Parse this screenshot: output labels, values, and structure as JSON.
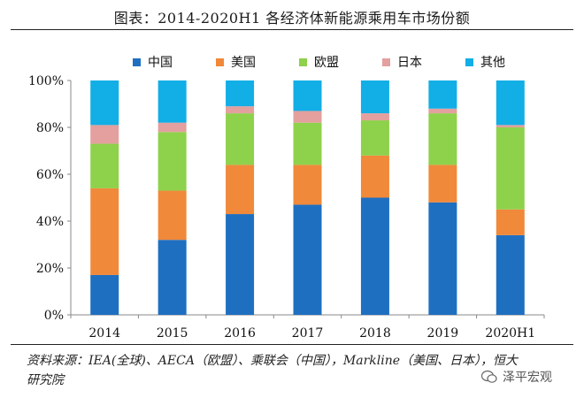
{
  "title": "图表：2014-2020H1 各经济体新能源乘用车市场份额",
  "source": "资料来源：IEA(全球)、AECA（欧盟）、乘联会（中国），Markline（美国、日本），恒大研究院",
  "watermark": "泽平宏观",
  "chart_data": {
    "type": "bar",
    "stacked": true,
    "categories": [
      "2014",
      "2015",
      "2016",
      "2017",
      "2018",
      "2019",
      "2020H1"
    ],
    "ylim": [
      0,
      100
    ],
    "yticks": [
      "0%",
      "20%",
      "40%",
      "60%",
      "80%",
      "100%"
    ],
    "legend_position": "top",
    "series": [
      {
        "name": "中国",
        "color": "#1f6fc1",
        "values": [
          17,
          32,
          43,
          47,
          50,
          48,
          34
        ]
      },
      {
        "name": "美国",
        "color": "#f0893a",
        "values": [
          37,
          21,
          21,
          17,
          18,
          16,
          11
        ]
      },
      {
        "name": "欧盟",
        "color": "#8ed14b",
        "values": [
          19,
          25,
          22,
          18,
          15,
          22,
          35
        ]
      },
      {
        "name": "日本",
        "color": "#e3a09e",
        "values": [
          8,
          4,
          3,
          5,
          3,
          2,
          1
        ]
      },
      {
        "name": "其他",
        "color": "#12aee6",
        "values": [
          19,
          18,
          11,
          13,
          14,
          12,
          19
        ]
      }
    ]
  }
}
